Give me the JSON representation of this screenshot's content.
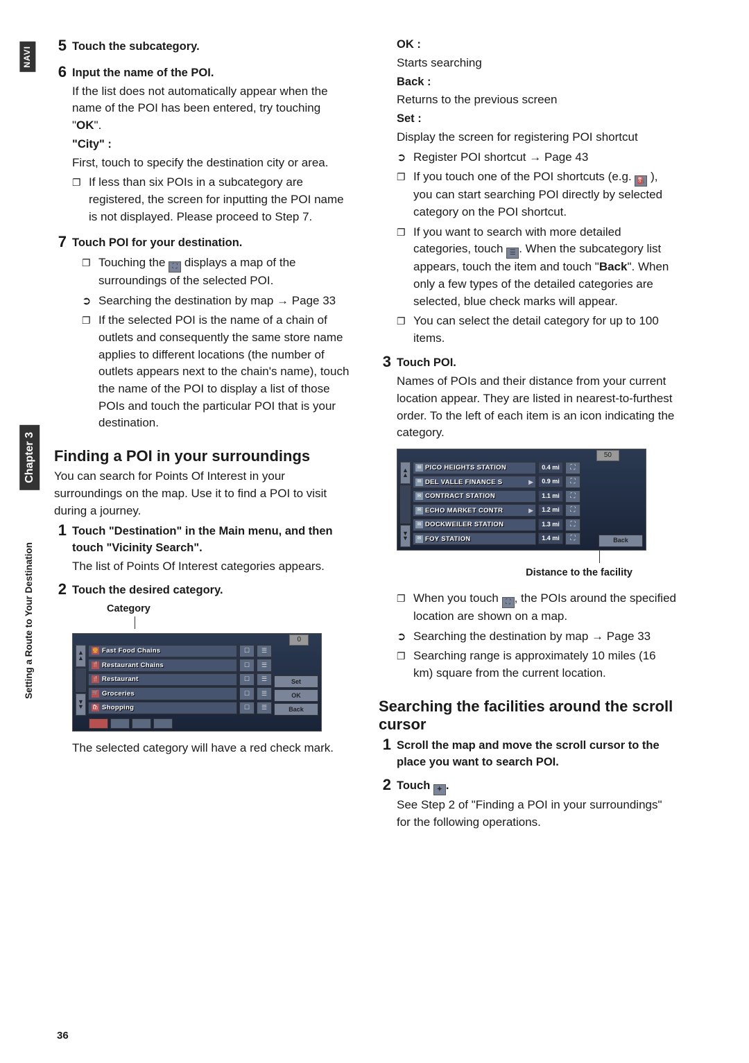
{
  "nav": {
    "navi": "NAVI",
    "chapter": "Chapter 3",
    "section": "Setting a Route to Your Destination"
  },
  "left": {
    "s5": {
      "num": "5",
      "title": "Touch the subcategory."
    },
    "s6": {
      "num": "6",
      "title": "Input the name of the POI.",
      "p1a": "If the list does not automatically appear when the name of the POI has been entered, try touching \"",
      "ok": "OK",
      "p1b": "\".",
      "city_h": "\"City\" :",
      "city_p": "First, touch to specify the destination city or area.",
      "b1": "If less than six POIs in a subcategory are registered, the screen for inputting the POI name is not displayed. Please proceed to Step 7."
    },
    "s7": {
      "num": "7",
      "title": "Touch POI for your destination.",
      "b1a": "Touching the ",
      "b1b": " displays a map of the surroundings of the selected POI.",
      "b2": "Searching the destination by map → Page 33",
      "b3": "If the selected POI is the name of a chain of outlets and consequently the same store name applies to different locations (the number of outlets appears next to the chain's name), touch the name of the POI to display a list of those POIs and touch the particular POI that is your destination."
    },
    "h_find": "Finding a POI in your surroundings",
    "find_p": "You can search for Points Of Interest in your surroundings on the map. Use it to find a POI to visit during a journey.",
    "s1": {
      "num": "1",
      "title": "Touch \"Destination\" in the Main menu, and then touch \"Vicinity Search\".",
      "p": "The list of Points Of Interest categories appears."
    },
    "s2": {
      "num": "2",
      "title": "Touch the desired category.",
      "cap": "Category",
      "after": "The selected category will have a red check mark."
    },
    "ss1": {
      "count": "0",
      "rows": [
        {
          "icon": "🍔",
          "text": "Fast Food Chains"
        },
        {
          "icon": "🍴",
          "text": "Restaurant Chains"
        },
        {
          "icon": "🍴",
          "text": "Restaurant"
        },
        {
          "icon": "🛒",
          "text": "Groceries"
        },
        {
          "icon": "🛍",
          "text": "Shopping"
        }
      ],
      "btns": {
        "set": "Set",
        "ok": "OK",
        "back": "Back"
      }
    }
  },
  "right": {
    "defs": {
      "ok_h": "OK :",
      "ok_p": "Starts searching",
      "back_h": "Back :",
      "back_p": "Returns to the previous screen",
      "set_h": "Set :",
      "set_p": "Display the screen for registering POI shortcut",
      "ref": "Register POI shortcut → Page 43",
      "b1": "If you touch one of the POI shortcuts (e.g. ",
      "b1b": " ), you can start searching POI directly by selected category on the POI shortcut.",
      "b2a": "If you want to search with more detailed categories, touch ",
      "b2b": ". When the subcategory list appears, touch the item and touch \"",
      "back_bold": "Back",
      "b2c": "\". When only a few types of the detailed categories are selected, blue check marks will appear.",
      "b3": "You can select the detail category for up to 100 items."
    },
    "s3": {
      "num": "3",
      "title": "Touch POI.",
      "p": "Names of POIs and their distance from your current location appear. They are listed in nearest-to-furthest order. To the left of each item is an icon indicating the category.",
      "cap": "Distance to the facility",
      "b1a": "When you touch ",
      "b1b": ", the POIs around the specified location are shown on a map.",
      "b2": "Searching the destination by map → Page 33",
      "b3": "Searching range is approximately 10 miles (16 km) square from the current location."
    },
    "ss2": {
      "count": "50",
      "rows": [
        {
          "text": "PICO HEIGHTS STATION",
          "dist": "0.4 mi"
        },
        {
          "text": "DEL VALLE FINANCE S",
          "dist": "0.9 mi",
          "arrow": true
        },
        {
          "text": "CONTRACT STATION",
          "dist": "1.1 mi"
        },
        {
          "text": "ECHO MARKET CONTR",
          "dist": "1.2 mi",
          "arrow": true
        },
        {
          "text": "DOCKWEILER STATION",
          "dist": "1.3 mi"
        },
        {
          "text": "FOY STATION",
          "dist": "1.4 mi"
        }
      ],
      "back": "Back"
    },
    "h_search": "Searching the facilities around the scroll cursor",
    "ss1": {
      "num": "1",
      "title": "Scroll the map and move the scroll cursor to the place you want to search POI."
    },
    "ss2step": {
      "num": "2",
      "title_a": "Touch ",
      "title_b": ".",
      "p": "See Step 2 of \"Finding a POI in your surroundings\" for the following operations."
    }
  },
  "page": "36"
}
